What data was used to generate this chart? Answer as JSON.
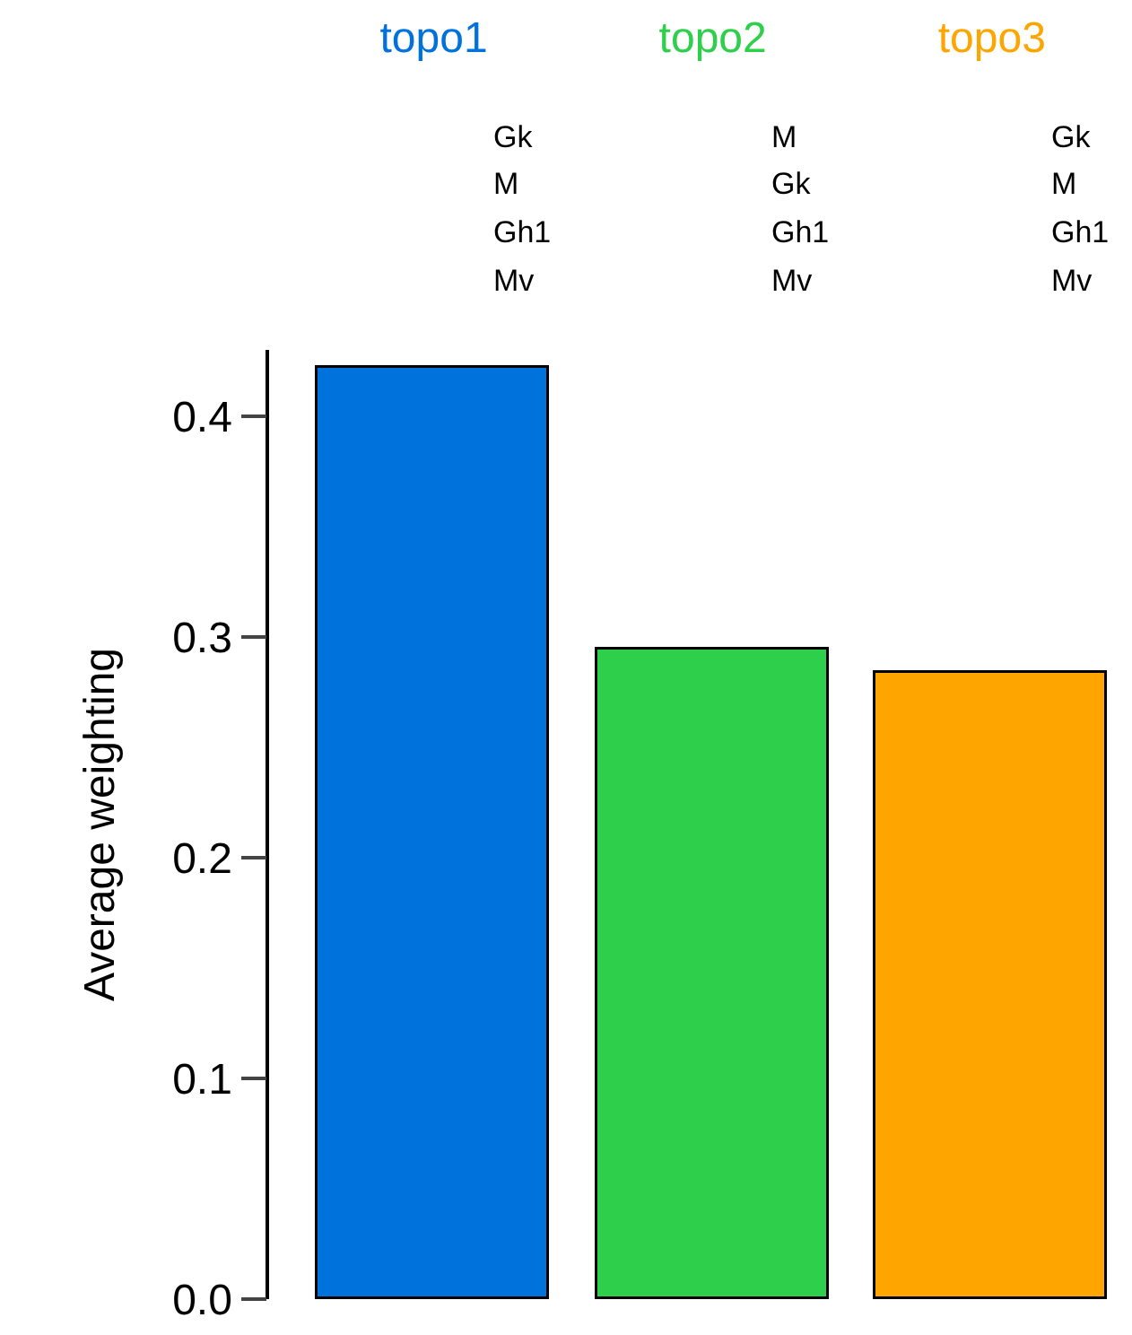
{
  "chart_data": {
    "type": "bar",
    "ylabel": "Average weighting",
    "categories": [
      "topo1",
      "topo2",
      "topo3"
    ],
    "values": [
      0.422,
      0.294,
      0.284
    ],
    "colors": [
      "#0072dc",
      "#2ecf4a",
      "#ffa500"
    ],
    "ylim": [
      0,
      0.43
    ],
    "yticks": [
      "0.0",
      0.1,
      0.2,
      0.3,
      0.4
    ],
    "annotations": [
      "Gk",
      "M",
      "Gh1",
      "Mv",
      "M",
      "Gk",
      "Gh1",
      "Mv",
      "Gk",
      "M",
      "Gh1",
      "Mv"
    ]
  }
}
